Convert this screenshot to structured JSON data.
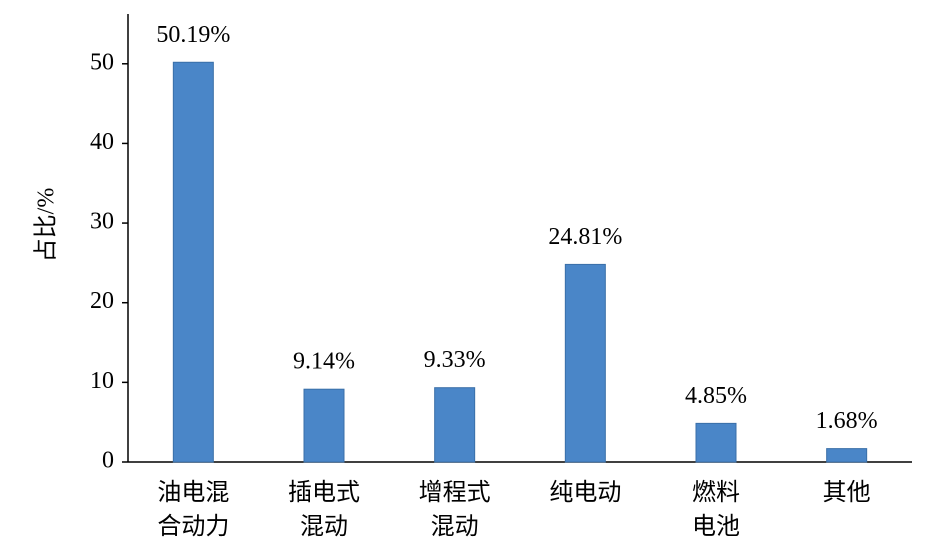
{
  "chart_data": {
    "type": "bar",
    "y_label": "占比/%",
    "categories": [
      "油电混\n合动力",
      "插电式\n混动",
      "增程式\n混动",
      "纯电动",
      "燃料\n电池",
      "其他"
    ],
    "values": [
      50.19,
      9.14,
      9.33,
      24.81,
      4.85,
      1.68
    ],
    "value_labels": [
      "50.19%",
      "9.14%",
      "9.33%",
      "24.81%",
      "4.85%",
      "1.68%"
    ],
    "color": "#4a86c8",
    "ylim": [
      0,
      56
    ],
    "yticks": [
      0,
      10,
      20,
      30,
      40,
      50
    ],
    "grid": false
  }
}
